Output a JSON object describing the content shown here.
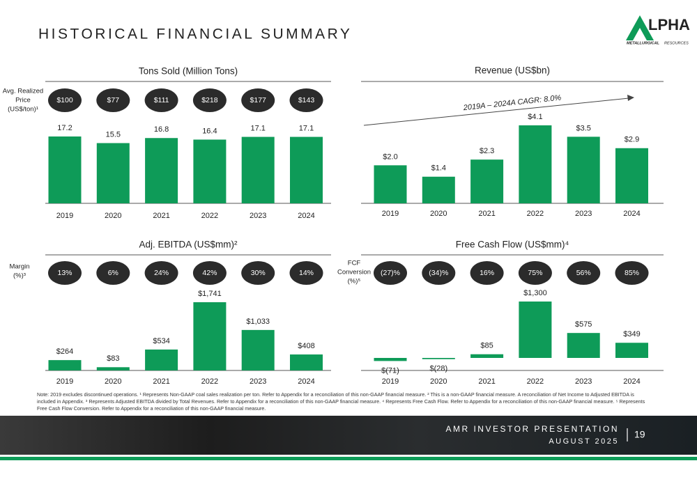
{
  "header": {
    "title": "HISTORICAL FINANCIAL SUMMARY",
    "logo_text": "LPHA",
    "logo_tagline_bold": "METALLURGICAL",
    "logo_tagline": "RESOURCES"
  },
  "chart_data": [
    {
      "type": "bar",
      "title": "Tons Sold (Million Tons)",
      "categories": [
        "2019",
        "2020",
        "2021",
        "2022",
        "2023",
        "2024"
      ],
      "values": [
        17.2,
        15.5,
        16.8,
        16.4,
        17.1,
        17.1
      ],
      "color": "#0e9b58",
      "badge_label": [
        "Avg. Realized",
        "Price",
        "(US$/ton)¹"
      ],
      "badges": [
        "$100",
        "$77",
        "$111",
        "$218",
        "$177",
        "$143"
      ]
    },
    {
      "type": "bar",
      "title": "Revenue (US$bn)",
      "categories": [
        "2019",
        "2020",
        "2021",
        "2022",
        "2023",
        "2024"
      ],
      "values": [
        2.0,
        1.4,
        2.3,
        4.1,
        3.5,
        2.9
      ],
      "value_labels": [
        "$2.0",
        "$1.4",
        "$2.3",
        "$4.1",
        "$3.5",
        "$2.9"
      ],
      "color": "#0e9b58",
      "annotation": "2019A – 2024A CAGR: 8.0%"
    },
    {
      "type": "bar",
      "title": "Adj. EBITDA (US$mm)²",
      "categories": [
        "2019",
        "2020",
        "2021",
        "2022",
        "2023",
        "2024"
      ],
      "values": [
        264,
        83,
        534,
        1741,
        1033,
        408
      ],
      "value_labels": [
        "$264",
        "$83",
        "$534",
        "$1,741",
        "$1,033",
        "$408"
      ],
      "color": "#0e9b58",
      "badge_label": [
        "Margin",
        "(%)³"
      ],
      "badges": [
        "13%",
        "6%",
        "24%",
        "42%",
        "30%",
        "14%"
      ]
    },
    {
      "type": "bar",
      "title": "Free Cash Flow (US$mm)⁴",
      "categories": [
        "2019",
        "2020",
        "2021",
        "2022",
        "2023",
        "2024"
      ],
      "values": [
        -71,
        -28,
        85,
        1300,
        575,
        349
      ],
      "value_labels": [
        "$(71)",
        "$(28)",
        "$85",
        "$1,300",
        "$575",
        "$349"
      ],
      "color": "#0e9b58",
      "badge_label": [
        "FCF",
        "Conversion",
        "(%)⁵"
      ],
      "badges": [
        "(27)%",
        "(34)%",
        "16%",
        "75%",
        "56%",
        "85%"
      ]
    }
  ],
  "footnote": "Note: 2019 excludes discontinued operations. ¹ Represents Non-GAAP coal sales realization per ton. Refer to Appendix for a reconciliation of this non-GAAP financial measure. ² This is a non-GAAP financial measure. A reconciliation of Net Income to Adjusted EBITDA is included in Appendix. ³ Represents Adjusted EBITDA divided by Total Revenues. Refer to Appendix for a reconciliation of this non-GAAP financial measure. ⁴ Represents Free Cash Flow. Refer to Appendix for a reconciliation of this non-GAAP financial measure. ⁵ Represents Free Cash Flow Conversion. Refer to Appendix for a reconciliation of this non-GAAP financial measure.",
  "footer": {
    "presentation": "AMR INVESTOR PRESENTATION",
    "date": "AUGUST 2025",
    "page": "19"
  }
}
